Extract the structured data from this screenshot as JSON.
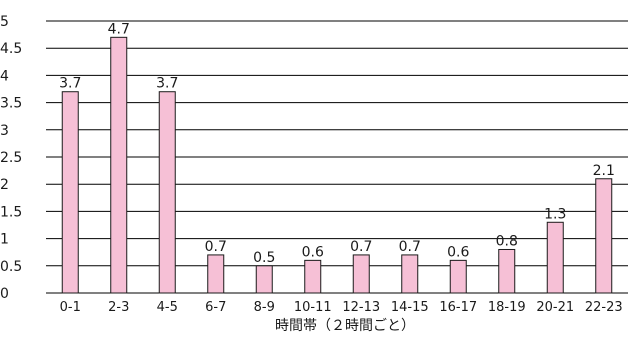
{
  "chart_data": {
    "type": "bar",
    "title": "",
    "xlabel": "時間帯（２時間ごと）",
    "ylabel": "",
    "categories": [
      "0-1",
      "2-3",
      "4-5",
      "6-7",
      "8-9",
      "10-11",
      "12-13",
      "14-15",
      "16-17",
      "18-19",
      "20-21",
      "22-23"
    ],
    "values": [
      3.7,
      4.7,
      3.7,
      0.7,
      0.5,
      0.6,
      0.7,
      0.7,
      0.6,
      0.8,
      1.3,
      2.1
    ],
    "ylim": [
      0,
      5
    ],
    "yticks": [
      "0",
      "0.5",
      "1",
      "1.5",
      "2",
      "2.5",
      "3",
      "3.5",
      "4",
      "4.5",
      "5"
    ],
    "grid": true,
    "legend": "none",
    "bar_fill": "#f6c0d6",
    "bar_stroke": "#1a1a1a",
    "grid_color": "#000000"
  }
}
